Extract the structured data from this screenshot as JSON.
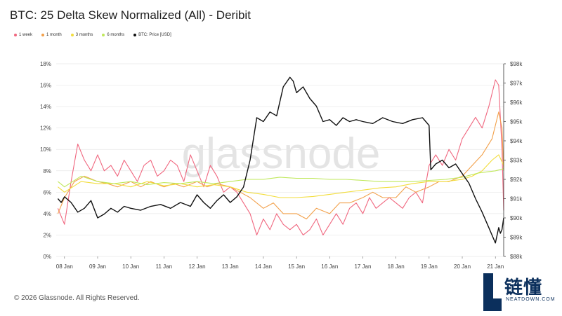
{
  "chart_data": {
    "type": "line",
    "title": "BTC: 25 Delta Skew Normalized (All) - Deribit",
    "x_ticks": [
      "08 Jan",
      "09 Jan",
      "10 Jan",
      "11 Jan",
      "12 Jan",
      "13 Jan",
      "14 Jan",
      "15 Jan",
      "16 Jan",
      "17 Jan",
      "18 Jan",
      "19 Jan",
      "20 Jan",
      "21 Jan"
    ],
    "xlim_days": [
      7.75,
      21.25
    ],
    "y_left_ticks": [
      "0%",
      "2%",
      "4%",
      "6%",
      "8%",
      "10%",
      "12%",
      "14%",
      "16%",
      "18%"
    ],
    "ylim_left": [
      0,
      18
    ],
    "y_right_ticks": [
      "$88k",
      "$89k",
      "$90k",
      "$91k",
      "$92k",
      "$93k",
      "$94k",
      "$95k",
      "$96k",
      "$97k",
      "$98k"
    ],
    "ylim_right": [
      88000,
      98000
    ],
    "grid": "horizontal",
    "legend_position": "top-left",
    "watermark": "glassnode",
    "series": [
      {
        "name": "1 week",
        "color": "#f0677f",
        "axis": "left",
        "x": [
          7.8,
          8.0,
          8.2,
          8.4,
          8.6,
          8.8,
          9.0,
          9.2,
          9.4,
          9.6,
          9.8,
          10.0,
          10.2,
          10.4,
          10.6,
          10.8,
          11.0,
          11.2,
          11.4,
          11.6,
          11.8,
          12.0,
          12.2,
          12.4,
          12.6,
          12.8,
          13.0,
          13.2,
          13.4,
          13.6,
          13.8,
          14.0,
          14.2,
          14.4,
          14.6,
          14.8,
          15.0,
          15.2,
          15.4,
          15.6,
          15.8,
          16.0,
          16.2,
          16.4,
          16.6,
          16.8,
          17.0,
          17.2,
          17.4,
          17.6,
          17.8,
          18.0,
          18.2,
          18.4,
          18.6,
          18.8,
          19.0,
          19.2,
          19.4,
          19.6,
          19.8,
          20.0,
          20.2,
          20.4,
          20.6,
          20.8,
          21.0,
          21.1,
          21.2,
          21.25
        ],
        "values": [
          4.5,
          3.0,
          7.0,
          10.5,
          9.0,
          8.0,
          9.5,
          8.0,
          8.5,
          7.5,
          9.0,
          8.0,
          7.0,
          8.5,
          9.0,
          7.5,
          8.0,
          9.0,
          8.5,
          7.0,
          9.5,
          8.0,
          6.5,
          8.5,
          7.5,
          6.0,
          6.5,
          6.0,
          5.0,
          4.0,
          2.0,
          3.5,
          2.5,
          4.0,
          3.0,
          2.5,
          3.0,
          2.0,
          2.5,
          3.5,
          2.0,
          3.0,
          4.0,
          3.0,
          4.5,
          5.0,
          4.0,
          5.5,
          4.5,
          5.0,
          5.5,
          5.0,
          4.5,
          5.5,
          6.0,
          5.0,
          8.5,
          9.5,
          8.5,
          10.0,
          9.0,
          11.0,
          12.0,
          13.0,
          12.0,
          14.0,
          16.5,
          16.0,
          10.0,
          4.3
        ]
      },
      {
        "name": "1 month",
        "color": "#f2a04a",
        "axis": "left",
        "x": [
          7.8,
          8.0,
          8.3,
          8.6,
          9.0,
          9.3,
          9.6,
          10.0,
          10.3,
          10.6,
          11.0,
          11.3,
          11.6,
          12.0,
          12.3,
          12.6,
          13.0,
          13.3,
          13.6,
          14.0,
          14.3,
          14.6,
          15.0,
          15.3,
          15.6,
          16.0,
          16.3,
          16.6,
          17.0,
          17.3,
          17.6,
          18.0,
          18.3,
          18.6,
          19.0,
          19.3,
          19.6,
          20.0,
          20.3,
          20.6,
          20.9,
          21.1,
          21.2,
          21.25
        ],
        "values": [
          4.0,
          5.5,
          7.0,
          7.5,
          7.0,
          6.8,
          6.5,
          7.0,
          6.5,
          7.0,
          6.5,
          6.8,
          6.5,
          7.0,
          6.5,
          6.8,
          6.5,
          6.0,
          5.5,
          4.5,
          5.0,
          4.0,
          4.0,
          3.5,
          4.5,
          4.0,
          5.0,
          5.0,
          5.5,
          6.0,
          5.5,
          5.5,
          6.5,
          6.0,
          6.5,
          7.0,
          7.0,
          7.5,
          8.5,
          9.5,
          11.0,
          13.5,
          12.0,
          8.0
        ]
      },
      {
        "name": "3 months",
        "color": "#f2dd3c",
        "axis": "left",
        "x": [
          7.8,
          8.0,
          8.5,
          9.0,
          9.5,
          10.0,
          10.5,
          11.0,
          11.5,
          12.0,
          12.5,
          13.0,
          13.5,
          14.0,
          14.5,
          15.0,
          15.5,
          16.0,
          16.5,
          17.0,
          17.5,
          18.0,
          18.5,
          19.0,
          19.5,
          20.0,
          20.3,
          20.6,
          20.9,
          21.1,
          21.25
        ],
        "values": [
          6.5,
          6.0,
          7.0,
          6.8,
          6.8,
          6.5,
          7.0,
          6.6,
          6.8,
          6.5,
          6.7,
          6.5,
          6.0,
          5.8,
          5.5,
          5.5,
          5.6,
          5.8,
          6.0,
          6.2,
          6.4,
          6.5,
          6.8,
          7.0,
          7.0,
          7.2,
          7.5,
          8.0,
          9.0,
          9.5,
          8.5
        ]
      },
      {
        "name": "6 months",
        "color": "#bfe85a",
        "axis": "left",
        "x": [
          7.8,
          8.0,
          8.5,
          9.0,
          9.5,
          10.0,
          10.5,
          11.0,
          11.5,
          12.0,
          12.5,
          13.0,
          13.5,
          14.0,
          14.5,
          15.0,
          15.5,
          16.0,
          16.5,
          17.0,
          17.5,
          18.0,
          18.5,
          19.0,
          19.5,
          20.0,
          20.5,
          21.0,
          21.25
        ],
        "values": [
          7.0,
          6.5,
          7.5,
          7.0,
          6.8,
          7.0,
          6.7,
          6.9,
          6.8,
          7.0,
          6.8,
          7.0,
          7.2,
          7.2,
          7.4,
          7.3,
          7.3,
          7.2,
          7.2,
          7.1,
          7.0,
          7.0,
          7.0,
          7.1,
          7.2,
          7.4,
          7.8,
          8.0,
          8.2
        ]
      },
      {
        "name": "BTC: Price [USD]",
        "color": "#111111",
        "axis": "right",
        "x": [
          7.8,
          7.9,
          8.0,
          8.2,
          8.4,
          8.6,
          8.8,
          9.0,
          9.2,
          9.4,
          9.6,
          9.8,
          10.0,
          10.3,
          10.6,
          10.9,
          11.2,
          11.5,
          11.8,
          12.0,
          12.2,
          12.4,
          12.6,
          12.8,
          13.0,
          13.2,
          13.4,
          13.6,
          13.8,
          14.0,
          14.2,
          14.4,
          14.6,
          14.8,
          14.9,
          15.0,
          15.2,
          15.4,
          15.6,
          15.8,
          16.0,
          16.2,
          16.4,
          16.6,
          16.8,
          17.0,
          17.3,
          17.6,
          17.9,
          18.2,
          18.5,
          18.8,
          19.0,
          19.05,
          19.2,
          19.4,
          19.6,
          19.8,
          20.0,
          20.2,
          20.4,
          20.6,
          20.8,
          21.0,
          21.1,
          21.15,
          21.2,
          21.25
        ],
        "values": [
          91.0,
          90.8,
          91.1,
          90.8,
          90.3,
          90.5,
          90.9,
          90.0,
          90.2,
          90.5,
          90.3,
          90.6,
          90.5,
          90.4,
          90.6,
          90.7,
          90.5,
          90.8,
          90.6,
          91.2,
          90.8,
          90.5,
          90.9,
          91.2,
          90.8,
          91.1,
          91.6,
          93.0,
          95.2,
          95.0,
          95.5,
          95.3,
          96.8,
          97.3,
          97.1,
          96.5,
          96.8,
          96.2,
          95.8,
          95.0,
          95.1,
          94.8,
          95.2,
          95.0,
          95.1,
          95.0,
          94.9,
          95.2,
          95.0,
          94.9,
          95.1,
          95.2,
          94.8,
          92.5,
          92.8,
          93.0,
          92.6,
          92.8,
          92.3,
          91.8,
          91.0,
          90.3,
          89.5,
          88.7,
          89.5,
          89.2,
          89.4,
          90.0
        ]
      }
    ]
  },
  "footer": {
    "copyright": "© 2026 Glassnode. All Rights Reserved."
  },
  "logo": {
    "chinese": "链懂",
    "english": "NEATDOWN.COM"
  },
  "colors": {
    "watermark": "#e4e4e4",
    "grid": "#e8e8e8",
    "axis_text": "#444444",
    "logo": "#0b2f5c"
  },
  "icons": {
    "brand": "neatdown-l-logo-icon"
  }
}
